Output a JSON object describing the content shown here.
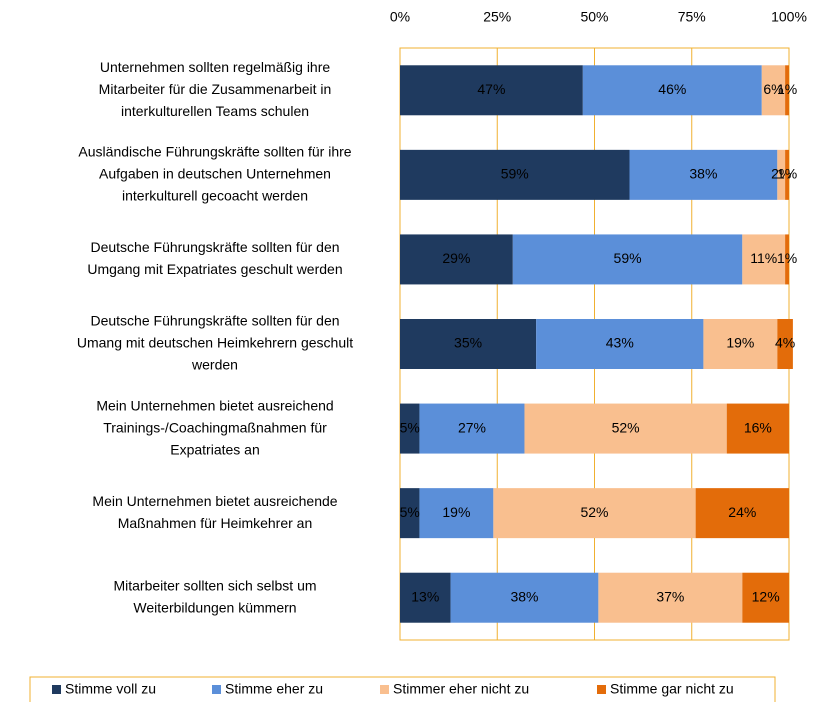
{
  "chart_data": {
    "type": "stacked_bar_horizontal",
    "categories": [
      [
        "Unternehmen sollten regelmäßig ihre",
        "Mitarbeiter für die Zusammenarbeit in",
        "interkulturellen Teams schulen"
      ],
      [
        "Ausländische Führungskräfte sollten für ihre",
        "Aufgaben in deutschen Unternehmen",
        "interkulturell gecoacht werden"
      ],
      [
        "Deutsche Führungskräfte sollten für den",
        "Umgang mit Expatriates geschult werden"
      ],
      [
        "Deutsche Führungskräfte sollten für den",
        "Umang mit deutschen Heimkehrern geschult",
        "werden"
      ],
      [
        "Mein Unternehmen bietet ausreichend",
        "Trainings-/Coachingmaßnahmen für",
        "Expatriates an"
      ],
      [
        "Mein Unternehmen bietet ausreichende",
        "Maßnahmen für Heimkehrer an"
      ],
      [
        "Mitarbeiter sollten sich selbst um",
        "Weiterbildungen kümmern"
      ]
    ],
    "series": [
      {
        "name": "Stimme voll zu",
        "color": "#1f3a5f",
        "values": [
          47,
          59,
          29,
          35,
          5,
          5,
          13
        ],
        "value_labels": [
          "47%",
          "59%",
          "29%",
          "35%",
          "5%",
          "5%",
          "13%"
        ]
      },
      {
        "name": "Stimme eher zu",
        "color": "#5b8fd9",
        "values": [
          46,
          38,
          59,
          43,
          27,
          19,
          38
        ],
        "value_labels": [
          "46%",
          "38%",
          "59%",
          "43%",
          "27%",
          "19%",
          "38%"
        ]
      },
      {
        "name": "Stimmer eher nicht zu",
        "color": "#f9bf8f",
        "values": [
          6,
          2,
          11,
          19,
          52,
          52,
          37
        ],
        "value_labels": [
          "6%",
          "2%",
          "11%",
          "19%",
          "52%",
          "52%",
          "37%"
        ]
      },
      {
        "name": "Stimme gar nicht zu",
        "color": "#e36c0a",
        "values": [
          1,
          1,
          1,
          4,
          16,
          24,
          12
        ],
        "value_labels": [
          "1%",
          "1%",
          "1%",
          "4%",
          "16%",
          "24%",
          "12%"
        ]
      }
    ],
    "xlim": [
      0,
      100
    ],
    "xticks": [
      {
        "value": 0,
        "label": "0%"
      },
      {
        "value": 25,
        "label": "25%"
      },
      {
        "value": 50,
        "label": "50%"
      },
      {
        "value": 75,
        "label": "75%"
      },
      {
        "value": 100,
        "label": "100%"
      }
    ],
    "grid": true,
    "grid_color": "#f0b030",
    "legend": "bottom"
  }
}
